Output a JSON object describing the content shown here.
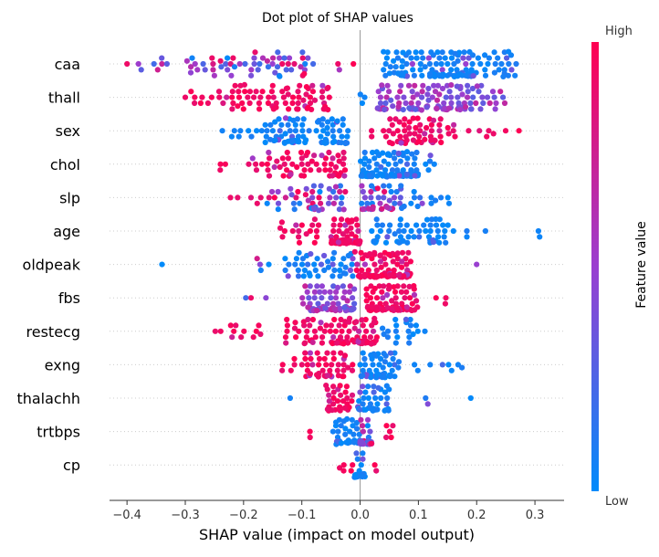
{
  "chart_data": {
    "type": "scatter",
    "title": "Dot plot of SHAP values",
    "xlabel": "SHAP value (impact on model output)",
    "ylabel": "",
    "xlim": [
      -0.43,
      0.35
    ],
    "xticks": [
      -0.4,
      -0.3,
      -0.2,
      -0.1,
      0.0,
      0.1,
      0.2,
      0.3
    ],
    "xtick_labels": [
      "−0.4",
      "−0.3",
      "−0.2",
      "−0.1",
      "0.0",
      "0.1",
      "0.2",
      "0.3"
    ],
    "features": [
      "caa",
      "thall",
      "sex",
      "chol",
      "slp",
      "age",
      "oldpeak",
      "fbs",
      "restecg",
      "exng",
      "thalachh",
      "trtbps",
      "cp"
    ],
    "colorbar": {
      "label": "Feature value",
      "high_label": "High",
      "low_label": "Low",
      "high_color": "#ff0052",
      "low_color": "#008bfb",
      "mid_color": "#9a3fd0"
    },
    "reference_line_at": 0.0,
    "series": [
      {
        "feature": "caa",
        "segments": [
          {
            "x": [
              -0.4,
              -0.24
            ],
            "n": 20,
            "color": "mix"
          },
          {
            "x": [
              -0.24,
              -0.08
            ],
            "n": 45,
            "color": "mix"
          },
          {
            "x": [
              -0.04,
              0.0
            ],
            "n": 3,
            "color": "high"
          },
          {
            "x": [
              0.04,
              0.2
            ],
            "n": 110,
            "color": "low"
          },
          {
            "x": [
              0.2,
              0.27
            ],
            "n": 25,
            "color": "low"
          }
        ]
      },
      {
        "feature": "thall",
        "segments": [
          {
            "x": [
              -0.31,
              -0.22
            ],
            "n": 12,
            "color": "high"
          },
          {
            "x": [
              -0.22,
              -0.05
            ],
            "n": 70,
            "color": "high"
          },
          {
            "x": [
              0.0,
              0.02
            ],
            "n": 3,
            "color": "low"
          },
          {
            "x": [
              0.03,
              0.2
            ],
            "n": 100,
            "color": "mid"
          },
          {
            "x": [
              0.2,
              0.25
            ],
            "n": 15,
            "color": "mid"
          }
        ]
      },
      {
        "feature": "sex",
        "segments": [
          {
            "x": [
              -0.24,
              -0.15
            ],
            "n": 15,
            "color": "low"
          },
          {
            "x": [
              -0.15,
              -0.02
            ],
            "n": 75,
            "color": "low"
          },
          {
            "x": [
              0.01,
              0.02
            ],
            "n": 2,
            "color": "high"
          },
          {
            "x": [
              0.04,
              0.14
            ],
            "n": 55,
            "color": "high"
          },
          {
            "x": [
              0.14,
              0.28
            ],
            "n": 12,
            "color": "high"
          }
        ]
      },
      {
        "feature": "chol",
        "segments": [
          {
            "x": [
              -0.24,
              -0.16
            ],
            "n": 8,
            "color": "high"
          },
          {
            "x": [
              -0.16,
              -0.02
            ],
            "n": 55,
            "color": "high"
          },
          {
            "x": [
              0.0,
              0.1
            ],
            "n": 110,
            "color": "low"
          },
          {
            "x": [
              0.1,
              0.14
            ],
            "n": 5,
            "color": "low"
          }
        ]
      },
      {
        "feature": "slp",
        "segments": [
          {
            "x": [
              -0.23,
              -0.16
            ],
            "n": 5,
            "color": "high"
          },
          {
            "x": [
              -0.16,
              -0.02
            ],
            "n": 50,
            "color": "mix"
          },
          {
            "x": [
              0.0,
              0.07
            ],
            "n": 40,
            "color": "mix"
          },
          {
            "x": [
              0.07,
              0.17
            ],
            "n": 15,
            "color": "low"
          }
        ]
      },
      {
        "feature": "age",
        "segments": [
          {
            "x": [
              -0.14,
              -0.07
            ],
            "n": 18,
            "color": "high"
          },
          {
            "x": [
              -0.05,
              0.0
            ],
            "n": 90,
            "color": "high"
          },
          {
            "x": [
              0.02,
              0.15
            ],
            "n": 55,
            "color": "low"
          },
          {
            "x": [
              0.15,
              0.22
            ],
            "n": 5,
            "color": "low"
          },
          {
            "x": [
              0.3,
              0.31
            ],
            "n": 2,
            "color": "low"
          }
        ]
      },
      {
        "feature": "oldpeak",
        "segments": [
          {
            "x": [
              -0.34,
              -0.34
            ],
            "n": 1,
            "color": "low"
          },
          {
            "x": [
              -0.18,
              -0.15
            ],
            "n": 4,
            "color": "mix"
          },
          {
            "x": [
              -0.13,
              -0.01
            ],
            "n": 45,
            "color": "low"
          },
          {
            "x": [
              -0.01,
              0.09
            ],
            "n": 95,
            "color": "high"
          },
          {
            "x": [
              0.2,
              0.2
            ],
            "n": 1,
            "color": "mid"
          }
        ]
      },
      {
        "feature": "fbs",
        "segments": [
          {
            "x": [
              -0.2,
              -0.16
            ],
            "n": 3,
            "color": "mix"
          },
          {
            "x": [
              -0.1,
              -0.01
            ],
            "n": 70,
            "color": "mid"
          },
          {
            "x": [
              0.01,
              0.1
            ],
            "n": 80,
            "color": "high"
          },
          {
            "x": [
              0.13,
              0.15
            ],
            "n": 3,
            "color": "high"
          }
        ]
      },
      {
        "feature": "restecg",
        "segments": [
          {
            "x": [
              -0.25,
              -0.17
            ],
            "n": 12,
            "color": "high"
          },
          {
            "x": [
              -0.13,
              -0.05
            ],
            "n": 30,
            "color": "high"
          },
          {
            "x": [
              -0.05,
              0.03
            ],
            "n": 70,
            "color": "high"
          },
          {
            "x": [
              0.03,
              0.12
            ],
            "n": 20,
            "color": "low"
          }
        ]
      },
      {
        "feature": "exng",
        "segments": [
          {
            "x": [
              -0.14,
              -0.1
            ],
            "n": 5,
            "color": "high"
          },
          {
            "x": [
              -0.1,
              -0.01
            ],
            "n": 45,
            "color": "high"
          },
          {
            "x": [
              0.0,
              0.06
            ],
            "n": 55,
            "color": "low"
          },
          {
            "x": [
              0.06,
              0.18
            ],
            "n": 10,
            "color": "low"
          }
        ]
      },
      {
        "feature": "thalachh",
        "segments": [
          {
            "x": [
              -0.12,
              -0.12
            ],
            "n": 1,
            "color": "low"
          },
          {
            "x": [
              -0.06,
              -0.01
            ],
            "n": 30,
            "color": "high"
          },
          {
            "x": [
              -0.01,
              0.05
            ],
            "n": 40,
            "color": "low"
          },
          {
            "x": [
              0.1,
              0.12
            ],
            "n": 2,
            "color": "low"
          },
          {
            "x": [
              0.19,
              0.19
            ],
            "n": 1,
            "color": "low"
          }
        ]
      },
      {
        "feature": "trtbps",
        "segments": [
          {
            "x": [
              -0.09,
              -0.08
            ],
            "n": 2,
            "color": "high"
          },
          {
            "x": [
              -0.05,
              0.0
            ],
            "n": 35,
            "color": "low"
          },
          {
            "x": [
              0.0,
              0.02
            ],
            "n": 40,
            "color": "mix"
          },
          {
            "x": [
              0.03,
              0.06
            ],
            "n": 5,
            "color": "high"
          }
        ]
      },
      {
        "feature": "cp",
        "segments": [
          {
            "x": [
              -0.04,
              -0.01
            ],
            "n": 5,
            "color": "high"
          },
          {
            "x": [
              -0.01,
              0.01
            ],
            "n": 25,
            "color": "low"
          },
          {
            "x": [
              0.02,
              0.03
            ],
            "n": 2,
            "color": "high"
          }
        ]
      }
    ]
  }
}
